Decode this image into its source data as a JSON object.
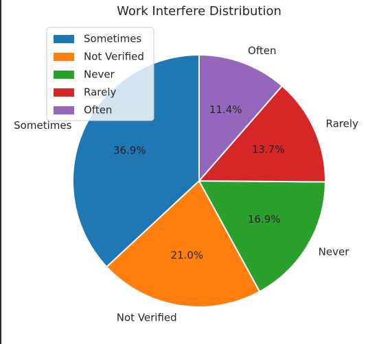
{
  "chart_data": {
    "type": "pie",
    "title": "Work Interfere Distribution",
    "start_angle_deg": 90,
    "direction": "counterclockwise",
    "legend_position": "upper-left",
    "slices": [
      {
        "label": "Sometimes",
        "percent": 36.9,
        "pct_label": "36.9%",
        "color": "#1f77b4"
      },
      {
        "label": "Not Verified",
        "percent": 21.0,
        "pct_label": "21.0%",
        "color": "#ff7f0e"
      },
      {
        "label": "Never",
        "percent": 16.9,
        "pct_label": "16.9%",
        "color": "#2ca02c"
      },
      {
        "label": "Rarely",
        "percent": 13.7,
        "pct_label": "13.7%",
        "color": "#d62728"
      },
      {
        "label": "Often",
        "percent": 11.4,
        "pct_label": "11.4%",
        "color": "#9467bd"
      }
    ],
    "legend": [
      "Sometimes",
      "Not Verified",
      "Never",
      "Rarely",
      "Often"
    ]
  }
}
